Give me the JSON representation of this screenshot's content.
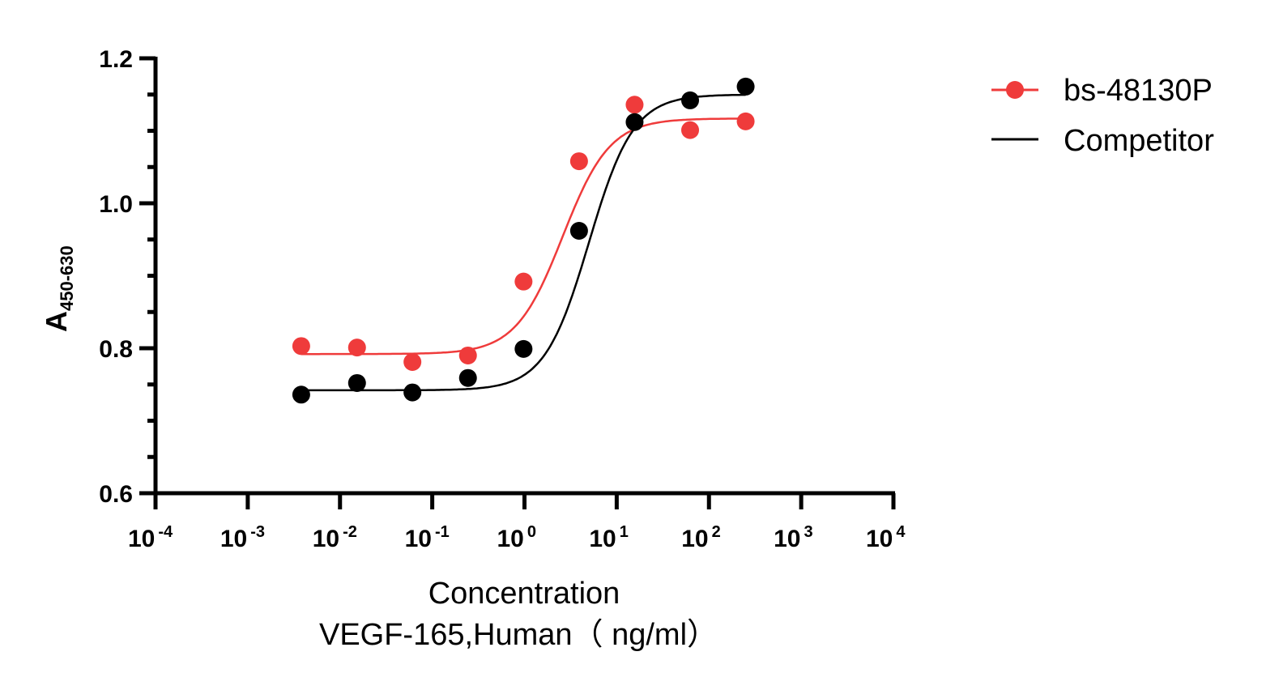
{
  "chart_data": {
    "type": "scatter",
    "title": "",
    "xlabel": "Concentration",
    "xlabel_line2": "VEGF-165,Human（ ng/ml）",
    "ylabel": "A",
    "ylabel_subscript": "450-630",
    "xscale": "log",
    "xlim": [
      0.0001,
      10000
    ],
    "ylim": [
      0.6,
      1.2
    ],
    "grid": false,
    "legend_position": "top-right",
    "x_ticks": [
      {
        "value": 0.0001,
        "base": "10",
        "exp": "-4"
      },
      {
        "value": 0.001,
        "base": "10",
        "exp": "-3"
      },
      {
        "value": 0.01,
        "base": "10",
        "exp": "-2"
      },
      {
        "value": 0.1,
        "base": "10",
        "exp": "-1"
      },
      {
        "value": 1,
        "base": "10",
        "exp": "0"
      },
      {
        "value": 10,
        "base": "10",
        "exp": "1"
      },
      {
        "value": 100,
        "base": "10",
        "exp": "2"
      },
      {
        "value": 1000,
        "base": "10",
        "exp": "3"
      },
      {
        "value": 10000,
        "base": "10",
        "exp": "4"
      }
    ],
    "y_ticks": [
      {
        "value": 0.6,
        "label": "0.6"
      },
      {
        "value": 0.8,
        "label": "0.8"
      },
      {
        "value": 1.0,
        "label": "1.0"
      },
      {
        "value": 1.2,
        "label": "1.2"
      }
    ],
    "y_minor_step": 0.05,
    "x": [
      0.0038,
      0.0153,
      0.061,
      0.244,
      0.977,
      3.906,
      15.625,
      62.5,
      250
    ],
    "series": [
      {
        "name": "bs-48130P",
        "color": "#EF3B3B",
        "marker": "circle",
        "values": [
          0.803,
          0.801,
          0.781,
          0.79,
          0.892,
          1.058,
          1.136,
          1.101,
          1.113
        ],
        "fit": {
          "model": "4PL",
          "bottom": 0.792,
          "top": 1.117,
          "ec50": 2.6,
          "hill": 1.7
        }
      },
      {
        "name": "Competitor",
        "color": "#000000",
        "marker": "circle",
        "values": [
          0.736,
          0.752,
          0.739,
          0.759,
          0.799,
          0.962,
          1.112,
          1.142,
          1.161
        ],
        "fit": {
          "model": "4PL",
          "bottom": 0.742,
          "top": 1.15,
          "ec50": 5.0,
          "hill": 1.8
        }
      }
    ]
  }
}
